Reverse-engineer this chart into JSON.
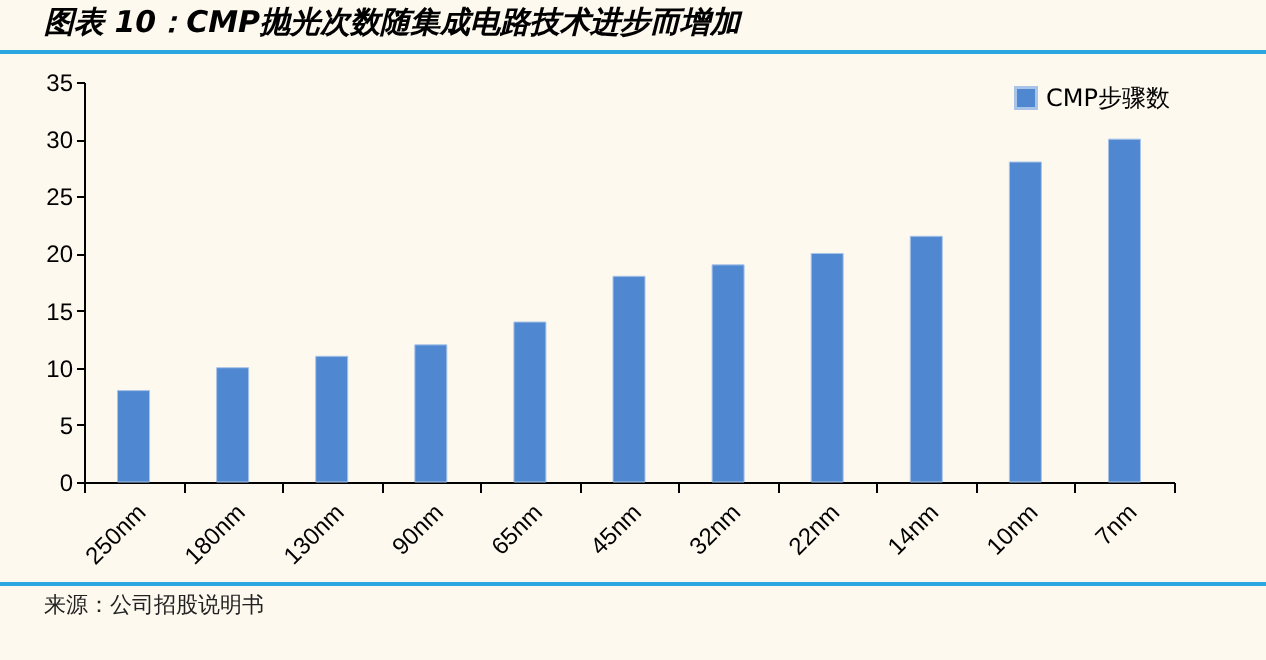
{
  "chart_data": {
    "type": "bar",
    "title": "图表 10：CMP抛光次数随集成电路技术进步而增加",
    "categories": [
      "250nm",
      "180nm",
      "130nm",
      "90nm",
      "65nm",
      "45nm",
      "32nm",
      "22nm",
      "14nm",
      "10nm",
      "7nm"
    ],
    "series": [
      {
        "name": "CMP步骤数",
        "color": "#4f88d0",
        "values": [
          8,
          10,
          11,
          12,
          14,
          18,
          19,
          20,
          21.5,
          28,
          30
        ]
      }
    ],
    "ylim": [
      0,
      35
    ],
    "yticks": [
      0,
      5,
      10,
      15,
      20,
      25,
      30,
      35
    ],
    "legend": "top right",
    "annotations": [
      "来源：公司招股说明书"
    ]
  }
}
